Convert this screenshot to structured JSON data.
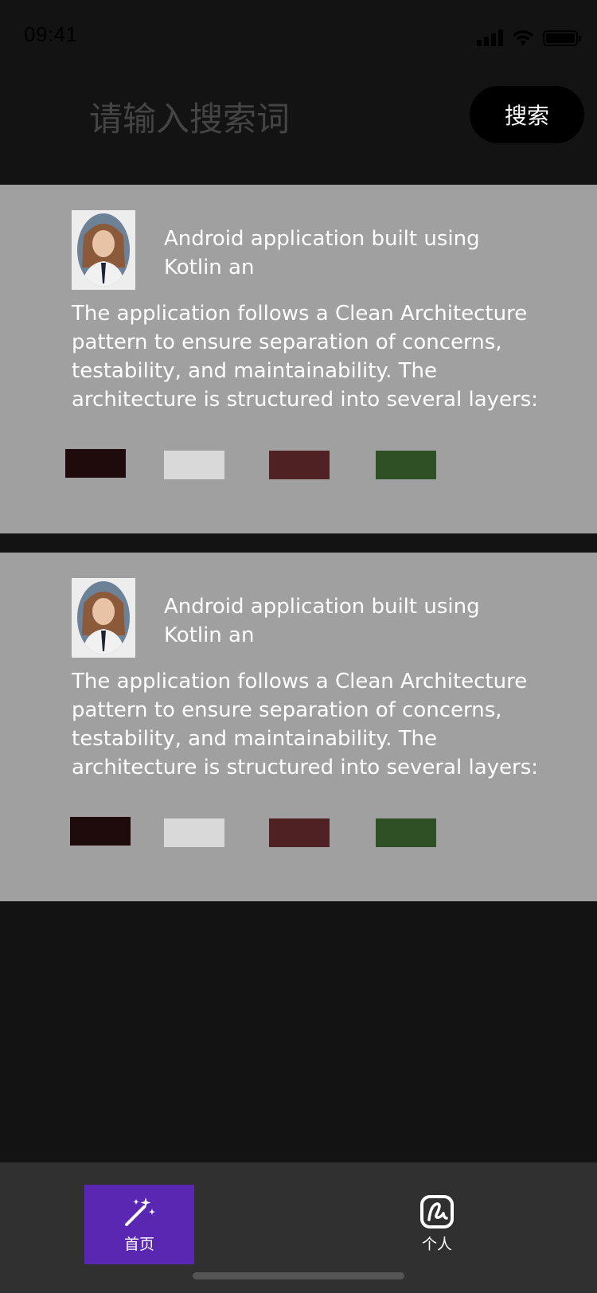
{
  "status_bar": {
    "time": "09:41"
  },
  "search": {
    "placeholder": "请输入搜索词",
    "value": "",
    "button_label": "搜索"
  },
  "cards": [
    {
      "title": "Android application built using Kotlin an",
      "body": "The application follows a Clean Architecture pattern to ensure separation of concerns, testability, and maintainability. The architecture is structured into several layers:",
      "swatches": [
        "#1f0b0c",
        "#d9d9d9",
        "#4f2123",
        "#2f4f24"
      ]
    },
    {
      "title": "Android application built using Kotlin an",
      "body": "The application follows a Clean Architecture pattern to ensure separation of concerns, testability, and maintainability. The architecture is structured into several layers:",
      "swatches": [
        "#1f0b0c",
        "#d9d9d9",
        "#4f2123",
        "#2f4f24"
      ]
    }
  ],
  "nav": [
    {
      "label": "首页",
      "icon": "magic-wand-icon",
      "active": true
    },
    {
      "label": "个人",
      "icon": "signature-icon",
      "active": false
    }
  ],
  "colors": {
    "background": "#131313",
    "card": "#a0a0a0",
    "nav_background": "#303030",
    "nav_active": "#5a27b3",
    "search_button": "#000000"
  }
}
